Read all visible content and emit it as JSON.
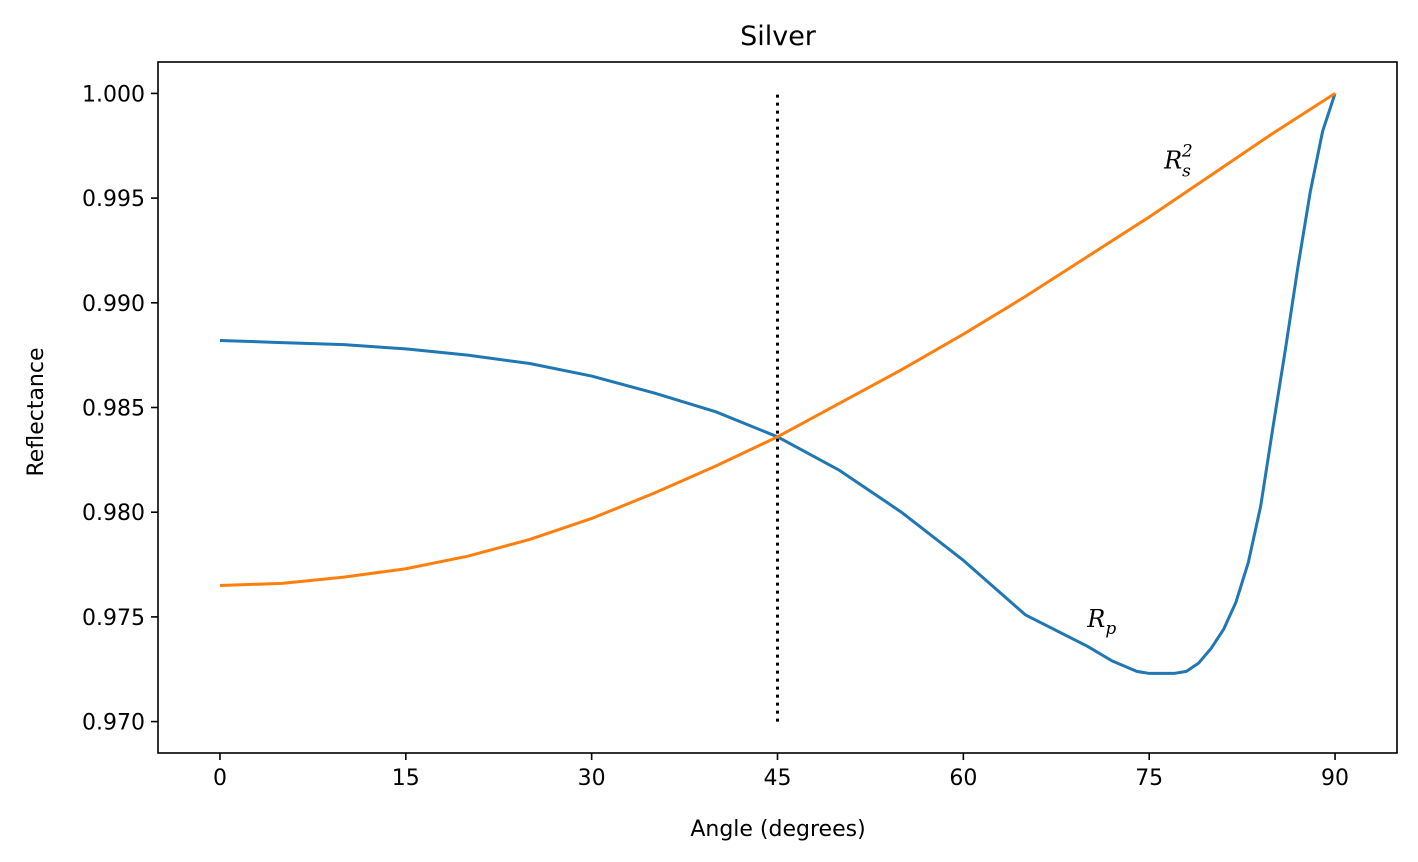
{
  "chart_data": {
    "type": "line",
    "title": "Silver",
    "xlabel": "Angle (degrees)",
    "ylabel": "Reflectance",
    "xlim": [
      -5,
      95
    ],
    "ylim": [
      0.9685,
      1.0015
    ],
    "xticks": [
      0,
      15,
      30,
      45,
      60,
      75,
      90
    ],
    "xtick_labels": [
      "0",
      "15",
      "30",
      "45",
      "60",
      "75",
      "90"
    ],
    "yticks": [
      0.97,
      0.975,
      0.98,
      0.985,
      0.99,
      0.995,
      1.0
    ],
    "ytick_labels": [
      "0.970",
      "0.975",
      "0.980",
      "0.985",
      "0.990",
      "0.995",
      "1.000"
    ],
    "grid": false,
    "series": [
      {
        "label": "Rp",
        "color": "#1f77b4",
        "x": [
          0,
          5,
          10,
          15,
          20,
          25,
          30,
          35,
          40,
          45,
          50,
          55,
          60,
          65,
          70,
          72,
          74,
          75,
          76,
          77,
          78,
          79,
          80,
          81,
          82,
          83,
          84,
          85,
          86,
          87,
          88,
          89,
          90
        ],
        "y": [
          0.9882,
          0.9881,
          0.988,
          0.9878,
          0.9875,
          0.9871,
          0.9865,
          0.9857,
          0.9848,
          0.9836,
          0.982,
          0.98,
          0.9777,
          0.9751,
          0.9736,
          0.9729,
          0.9724,
          0.9723,
          0.9723,
          0.9723,
          0.9724,
          0.9728,
          0.9735,
          0.9744,
          0.9757,
          0.9776,
          0.9803,
          0.9841,
          0.9878,
          0.9917,
          0.9953,
          0.9982,
          1.0
        ]
      },
      {
        "label": "Rs^2",
        "color": "#ff7f0e",
        "x": [
          0,
          5,
          10,
          15,
          20,
          25,
          30,
          35,
          40,
          45,
          50,
          55,
          60,
          65,
          70,
          75,
          80,
          85,
          90
        ],
        "y": [
          0.9765,
          0.9766,
          0.9769,
          0.9773,
          0.9779,
          0.9787,
          0.9797,
          0.9809,
          0.9822,
          0.9836,
          0.9852,
          0.9868,
          0.9885,
          0.9903,
          0.9922,
          0.9941,
          0.9961,
          0.9981,
          1.0
        ]
      }
    ],
    "vline": {
      "x": 45,
      "ymin": 0.97,
      "ymax": 1.0,
      "style": "dotted",
      "color": "#000000"
    },
    "annotations": [
      {
        "base": "R",
        "sub": "s",
        "sup": "2",
        "x": 76.2,
        "y": 0.9968
      },
      {
        "base": "R",
        "sub": "p",
        "sup": "",
        "x": 70.0,
        "y": 0.9749
      }
    ]
  }
}
